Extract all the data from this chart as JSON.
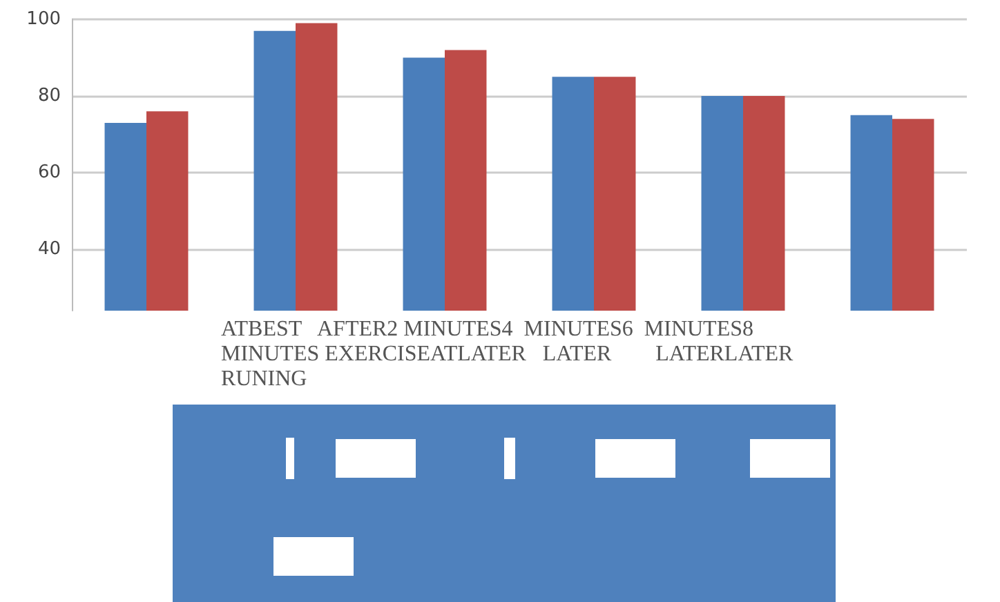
{
  "chart_data": {
    "type": "bar",
    "categories": [
      null,
      null,
      null,
      null,
      null,
      null
    ],
    "series": [
      {
        "color": "#4a7ebb",
        "values": [
          73,
          97,
          90,
          85,
          80,
          75
        ]
      },
      {
        "color": "#be4b48",
        "values": [
          76,
          99,
          92,
          85,
          80,
          74
        ]
      }
    ],
    "ylim": [
      24,
      100
    ],
    "yticks": [
      40,
      60,
      80,
      100
    ],
    "grid": "y",
    "annotations": [
      "ATBEST   AFTER2 MINUTES4  MINUTES6  MINUTES8\nMINUTES EXERCISEATLATER   LATER        LATERLATER\nRUNING"
    ]
  }
}
